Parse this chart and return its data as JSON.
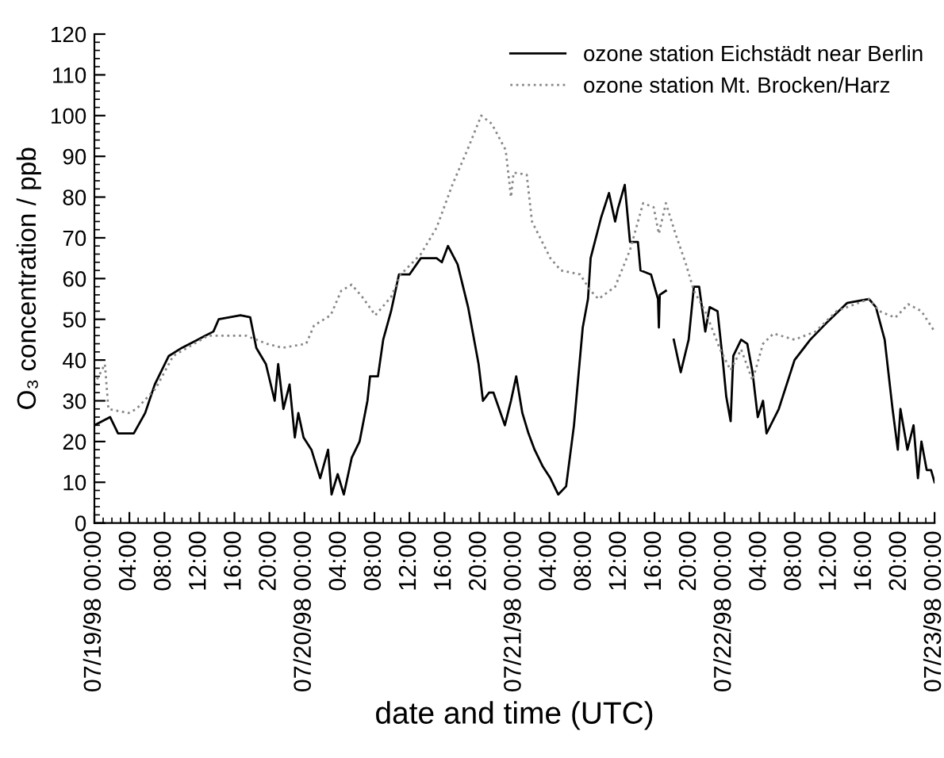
{
  "chart_data": {
    "type": "line",
    "xlabel": "date and time (UTC)",
    "ylabel": "O₃ concentration / ppb",
    "xlim": [
      "1998-07-19T00:00",
      "1998-07-23T00:00"
    ],
    "ylim": [
      0,
      120
    ],
    "xticks": [
      {
        "value": "1998-07-19T00:00",
        "label": "07/19/98 00:00"
      },
      {
        "value": "1998-07-19T04:00",
        "label": "04:00"
      },
      {
        "value": "1998-07-19T08:00",
        "label": "08:00"
      },
      {
        "value": "1998-07-19T12:00",
        "label": "12:00"
      },
      {
        "value": "1998-07-19T16:00",
        "label": "16:00"
      },
      {
        "value": "1998-07-19T20:00",
        "label": "20:00"
      },
      {
        "value": "1998-07-20T00:00",
        "label": "07/20/98 00:00"
      },
      {
        "value": "1998-07-20T04:00",
        "label": "04:00"
      },
      {
        "value": "1998-07-20T08:00",
        "label": "08:00"
      },
      {
        "value": "1998-07-20T12:00",
        "label": "12:00"
      },
      {
        "value": "1998-07-20T16:00",
        "label": "16:00"
      },
      {
        "value": "1998-07-20T20:00",
        "label": "20:00"
      },
      {
        "value": "1998-07-21T00:00",
        "label": "07/21/98 00:00"
      },
      {
        "value": "1998-07-21T04:00",
        "label": "04:00"
      },
      {
        "value": "1998-07-21T08:00",
        "label": "08:00"
      },
      {
        "value": "1998-07-21T12:00",
        "label": "12:00"
      },
      {
        "value": "1998-07-21T16:00",
        "label": "16:00"
      },
      {
        "value": "1998-07-21T20:00",
        "label": "20:00"
      },
      {
        "value": "1998-07-22T00:00",
        "label": "07/22/98 00:00"
      },
      {
        "value": "1998-07-22T04:00",
        "label": "04:00"
      },
      {
        "value": "1998-07-22T08:00",
        "label": "08:00"
      },
      {
        "value": "1998-07-22T12:00",
        "label": "12:00"
      },
      {
        "value": "1998-07-22T16:00",
        "label": "16:00"
      },
      {
        "value": "1998-07-22T20:00",
        "label": "20:00"
      },
      {
        "value": "1998-07-23T00:00",
        "label": "07/23/98 00:00"
      }
    ],
    "yticks": [
      0,
      10,
      20,
      30,
      40,
      50,
      60,
      70,
      80,
      90,
      100,
      110,
      120
    ],
    "grid": false,
    "legend": "top right",
    "marker": "none",
    "series": [
      {
        "name": "ozone station Eichstädt near Berlin",
        "color": "#000000",
        "line_style": "solid",
        "x": [
          "1998-07-19T00:00",
          "1998-07-19T01:48",
          "1998-07-19T02:42",
          "1998-07-19T04:30",
          "1998-07-19T05:48",
          "1998-07-19T06:54",
          "1998-07-19T08:30",
          "1998-07-19T10:00",
          "1998-07-19T11:48",
          "1998-07-19T13:36",
          "1998-07-19T14:12",
          "1998-07-19T16:42",
          "1998-07-19T17:48",
          "1998-07-19T18:30",
          "1998-07-19T19:36",
          "1998-07-19T20:36",
          "1998-07-19T21:00",
          "1998-07-19T21:36",
          "1998-07-19T22:18",
          "1998-07-19T22:54",
          "1998-07-19T23:18",
          "1998-07-19T23:54",
          "1998-07-20T00:48",
          "1998-07-20T01:48",
          "1998-07-20T02:42",
          "1998-07-20T03:06",
          "1998-07-20T03:48",
          "1998-07-20T04:30",
          "1998-07-20T05:24",
          "1998-07-20T06:18",
          "1998-07-20T07:12",
          "1998-07-20T07:30",
          "1998-07-20T08:24",
          "1998-07-20T09:00",
          "1998-07-20T09:54",
          "1998-07-20T10:48",
          "1998-07-20T12:00",
          "1998-07-20T13:18",
          "1998-07-20T15:06",
          "1998-07-20T15:42",
          "1998-07-20T16:24",
          "1998-07-20T17:30",
          "1998-07-20T18:42",
          "1998-07-20T19:54",
          "1998-07-20T20:24",
          "1998-07-20T21:06",
          "1998-07-20T21:36",
          "1998-07-20T22:54",
          "1998-07-20T23:36",
          "1998-07-21T00:12",
          "1998-07-21T00:54",
          "1998-07-21T01:36",
          "1998-07-21T02:18",
          "1998-07-21T03:12",
          "1998-07-21T04:06",
          "1998-07-21T05:00",
          "1998-07-21T05:54",
          "1998-07-21T06:48",
          "1998-07-21T07:48",
          "1998-07-21T08:24",
          "1998-07-21T08:42",
          "1998-07-21T09:54",
          "1998-07-21T10:48",
          "1998-07-21T11:30",
          "1998-07-21T11:48",
          "1998-07-21T12:36",
          "1998-07-21T13:12",
          "1998-07-21T14:06",
          "1998-07-21T14:24",
          "1998-07-21T15:36",
          "1998-07-21T16:24",
          "1998-07-21T16:30",
          "1998-07-21T16:36",
          "1998-07-21T17:18",
          "1998-07-21T17:42",
          "1998-07-21T18:12",
          "1998-07-21T19:00",
          "1998-07-21T19:54",
          "1998-07-21T20:30",
          "1998-07-21T21:06",
          "1998-07-21T21:48",
          "1998-07-21T22:18",
          "1998-07-21T23:12",
          "1998-07-21T23:48",
          "1998-07-22T00:12",
          "1998-07-22T00:42",
          "1998-07-22T01:00",
          "1998-07-22T01:54",
          "1998-07-22T02:36",
          "1998-07-22T03:12",
          "1998-07-22T03:48",
          "1998-07-22T04:24",
          "1998-07-22T04:48",
          "1998-07-22T06:12",
          "1998-07-22T08:00",
          "1998-07-22T09:48",
          "1998-07-22T11:36",
          "1998-07-22T14:00",
          "1998-07-22T16:30",
          "1998-07-22T17:18",
          "1998-07-22T18:18",
          "1998-07-22T19:12",
          "1998-07-22T19:48",
          "1998-07-22T20:06",
          "1998-07-22T20:54",
          "1998-07-22T21:36",
          "1998-07-22T22:06",
          "1998-07-22T22:30",
          "1998-07-22T23:06",
          "1998-07-22T23:36",
          "1998-07-23T00:00"
        ],
        "values": [
          24,
          26,
          22,
          22,
          27,
          34,
          41,
          43,
          45,
          47,
          50,
          51,
          50.5,
          43,
          39,
          30,
          39,
          28,
          34,
          21,
          27,
          21,
          18,
          11,
          18,
          7,
          12,
          7,
          16,
          20,
          30,
          36,
          36,
          45,
          52,
          61,
          61,
          65,
          65,
          64,
          68,
          63.5,
          53,
          39,
          30,
          32,
          32,
          24,
          30,
          36,
          27,
          22,
          18,
          14,
          11,
          7,
          9,
          24,
          48,
          55,
          65,
          75,
          81,
          74,
          77,
          83,
          69,
          69,
          62,
          61,
          55,
          48,
          56,
          57,
          null,
          45,
          37,
          45,
          58,
          58,
          47,
          53,
          52,
          40,
          31,
          25,
          41,
          45,
          44,
          37,
          26,
          30,
          22,
          28,
          40,
          45,
          49,
          54,
          55,
          53,
          45,
          28,
          18,
          28,
          18,
          24,
          11,
          20,
          13,
          13,
          10
        ]
      },
      {
        "name": "ozone station Mt. Brocken/Harz",
        "color": "#888888",
        "line_style": "dotted",
        "x": [
          "1998-07-19T00:00",
          "1998-07-19T01:12",
          "1998-07-19T01:36",
          "1998-07-19T03:54",
          "1998-07-19T04:48",
          "1998-07-19T07:00",
          "1998-07-19T09:00",
          "1998-07-19T13:00",
          "1998-07-19T17:18",
          "1998-07-19T19:42",
          "1998-07-19T21:30",
          "1998-07-20T00:12",
          "1998-07-20T01:06",
          "1998-07-20T03:00",
          "1998-07-20T04:12",
          "1998-07-20T05:24",
          "1998-07-20T06:36",
          "1998-07-20T08:06",
          "1998-07-20T09:54",
          "1998-07-20T11:00",
          "1998-07-20T13:18",
          "1998-07-20T15:06",
          "1998-07-20T16:54",
          "1998-07-20T18:42",
          "1998-07-20T20:12",
          "1998-07-20T21:24",
          "1998-07-20T23:00",
          "1998-07-20T23:36",
          "1998-07-20T23:54",
          "1998-07-21T01:24",
          "1998-07-21T02:00",
          "1998-07-21T04:06",
          "1998-07-21T05:18",
          "1998-07-21T07:30",
          "1998-07-21T08:42",
          "1998-07-21T09:36",
          "1998-07-21T11:30",
          "1998-07-21T13:12",
          "1998-07-21T14:42",
          "1998-07-21T15:54",
          "1998-07-21T16:30",
          "1998-07-21T17:18",
          "1998-07-21T18:24",
          "1998-07-21T19:36",
          "1998-07-21T20:30",
          "1998-07-21T21:48",
          "1998-07-21T23:30",
          "1998-07-22T00:42",
          "1998-07-22T01:54",
          "1998-07-22T03:12",
          "1998-07-22T04:24",
          "1998-07-22T05:36",
          "1998-07-22T08:00",
          "1998-07-22T10:24",
          "1998-07-22T12:48",
          "1998-07-22T16:30",
          "1998-07-22T17:42",
          "1998-07-22T19:30",
          "1998-07-22T21:00",
          "1998-07-22T22:30",
          "1998-07-23T00:00"
        ],
        "values": [
          34,
          39,
          28,
          27,
          28,
          33,
          41,
          46,
          46,
          44,
          43,
          44,
          48.5,
          51,
          57,
          58.5,
          55.5,
          51,
          55.5,
          61,
          66,
          72.5,
          83,
          92,
          100,
          98,
          91.5,
          80,
          86,
          85.5,
          74,
          65,
          62,
          61,
          57,
          55,
          58,
          67,
          78.5,
          77.5,
          71,
          78.5,
          71,
          63.5,
          57,
          52,
          42.6,
          37.5,
          42.6,
          35,
          44,
          46.5,
          45,
          47,
          52,
          55,
          52,
          50.4,
          53.7,
          52,
          47
        ]
      }
    ]
  }
}
